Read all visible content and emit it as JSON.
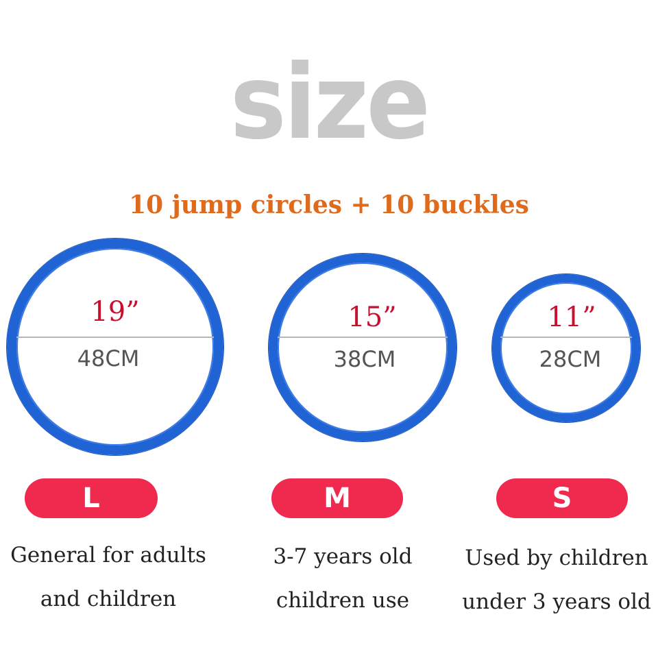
{
  "header": {
    "title": "size",
    "subtitle": "10 jump circles + 10 buckles"
  },
  "colors": {
    "ring_blue": "#1f63d4",
    "inch_red": "#c8102e",
    "pill_red": "#f0294f",
    "subtitle_orange": "#e06a1c",
    "title_gray": "#c8c8c8"
  },
  "sizes": [
    {
      "size": "L",
      "inches": "19”",
      "cm": "48CM",
      "desc_line1": "General for adults",
      "desc_line2": "and children"
    },
    {
      "size": "M",
      "inches": "15”",
      "cm": "38CM",
      "desc_line1": "3-7 years old",
      "desc_line2": "children use"
    },
    {
      "size": "S",
      "inches": "11”",
      "cm": "28CM",
      "desc_line1": "Used by children",
      "desc_line2": "under 3 years old"
    }
  ]
}
